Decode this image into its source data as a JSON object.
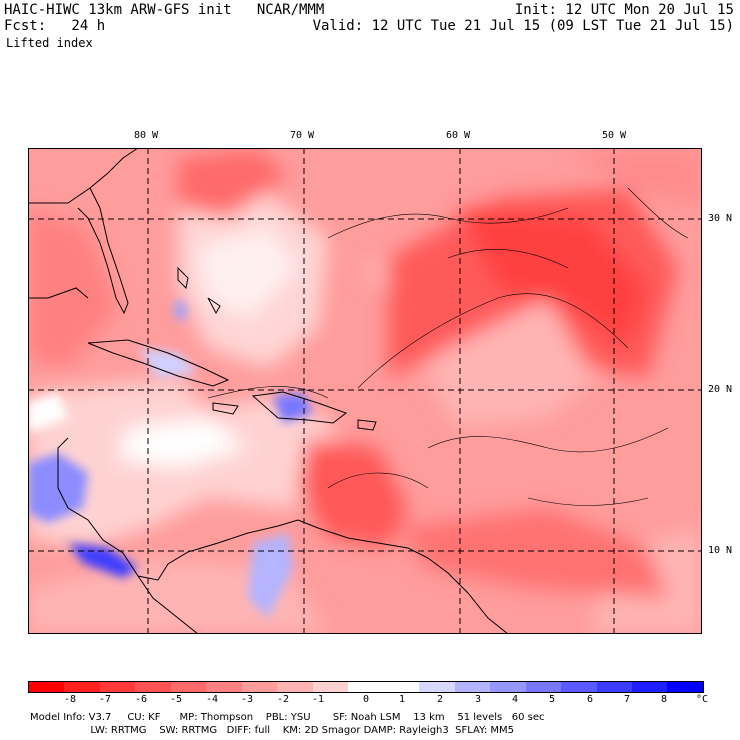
{
  "header": {
    "line1_left": "HAIC-HIWC 13km ARW-GFS init   NCAR/MMM",
    "line2_left": "Fcst:   24 h",
    "line1_right": "Init: 12 UTC Mon 20 Jul 15",
    "line2_right": "Valid: 12 UTC Tue 21 Jul 15 (09 LST Tue 21 Jul 15)",
    "field_name": "Lifted index"
  },
  "map": {
    "lon_labels": [
      "80 W",
      "70 W",
      "60 W",
      "50 W"
    ],
    "lat_labels": [
      "30 N",
      "20 N",
      "10 N"
    ]
  },
  "colorbar": {
    "ticks": [
      "-8",
      "-7",
      "-6",
      "-5",
      "-4",
      "-3",
      "-2",
      "-1",
      "0",
      "1",
      "2",
      "3",
      "4",
      "5",
      "6",
      "7",
      "8"
    ],
    "unit": "°C",
    "colors": [
      "#ff0000",
      "#ff2020",
      "#ff3a3a",
      "#ff5252",
      "#ff6a6a",
      "#ff8282",
      "#ff9c9c",
      "#ffb4b4",
      "#ffd2d2",
      "#ffffff",
      "#ffffff",
      "#d8d8ff",
      "#b4b4ff",
      "#9696ff",
      "#7878ff",
      "#5a5aff",
      "#3c3cff",
      "#1e1eff",
      "#0000ff"
    ]
  },
  "footer": {
    "line1": "Model Info: V3.7     CU: KF      MP: Thompson    PBL: YSU       SF: Noah LSM    13 km    51 levels   60 sec",
    "line2": "                   LW: RRTMG    SW: RRTMG   DIFF: full    KM: 2D Smagor DAMP: Rayleigh3  SFLAY: MM5"
  }
}
